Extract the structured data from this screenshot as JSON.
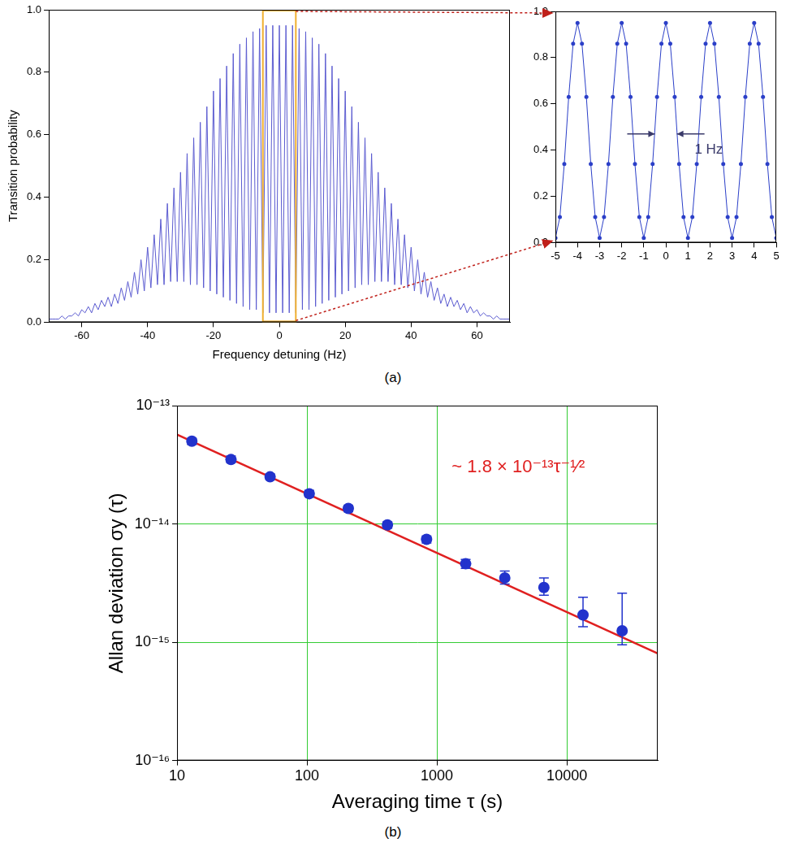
{
  "chart_data": [
    {
      "type": "line",
      "panel_label": "(a)",
      "x_label": "Frequency detuning (Hz)",
      "y_label": "Transition probability",
      "xlim": [
        -70,
        70
      ],
      "xticks": [
        -60,
        -40,
        -20,
        0,
        20,
        40,
        60
      ],
      "ylim": [
        0,
        1
      ],
      "yticks": [
        {
          "value": 0,
          "label": "0.0"
        },
        0.2,
        0.4,
        0.6,
        0.8,
        {
          "value": 1,
          "label": "1.0"
        }
      ],
      "grid": false,
      "color": "#5b5bd0",
      "marker": "none",
      "line_style": "solid",
      "highlight_range": [
        -5,
        5
      ],
      "x": [
        -70,
        -69,
        -68,
        -67,
        -66,
        -65,
        -64,
        -63,
        -62,
        -61,
        -60,
        -59,
        -58,
        -57,
        -56,
        -55,
        -54,
        -53,
        -52,
        -51,
        -50,
        -49,
        -48,
        -47,
        -46,
        -45,
        -44,
        -43,
        -42,
        -41,
        -40,
        -39,
        -38,
        -37,
        -36,
        -35,
        -34,
        -33,
        -32,
        -31,
        -30,
        -29,
        -28,
        -27,
        -26,
        -25,
        -24,
        -23,
        -22,
        -21,
        -20,
        -19,
        -18,
        -17,
        -16,
        -15,
        -14,
        -13,
        -12,
        -11,
        -10,
        -9,
        -8,
        -7,
        -6,
        -5,
        -4,
        -3,
        -2,
        -1,
        0,
        1,
        2,
        3,
        4,
        5,
        6,
        7,
        8,
        9,
        10,
        11,
        12,
        13,
        14,
        15,
        16,
        17,
        18,
        19,
        20,
        21,
        22,
        23,
        24,
        25,
        26,
        27,
        28,
        29,
        30,
        31,
        32,
        33,
        34,
        35,
        36,
        37,
        38,
        39,
        40,
        41,
        42,
        43,
        44,
        45,
        46,
        47,
        48,
        49,
        50,
        51,
        52,
        53,
        54,
        55,
        56,
        57,
        58,
        59,
        60,
        61,
        62,
        63,
        64,
        65,
        66,
        67,
        68,
        69,
        70
      ],
      "values": [
        0.01,
        0.01,
        0.01,
        0.01,
        0.02,
        0.01,
        0.02,
        0.02,
        0.03,
        0.02,
        0.04,
        0.03,
        0.05,
        0.03,
        0.06,
        0.04,
        0.07,
        0.05,
        0.08,
        0.05,
        0.09,
        0.06,
        0.11,
        0.07,
        0.13,
        0.08,
        0.16,
        0.09,
        0.2,
        0.1,
        0.24,
        0.11,
        0.28,
        0.12,
        0.33,
        0.12,
        0.38,
        0.13,
        0.43,
        0.13,
        0.48,
        0.13,
        0.54,
        0.12,
        0.59,
        0.12,
        0.64,
        0.11,
        0.69,
        0.1,
        0.74,
        0.09,
        0.78,
        0.08,
        0.82,
        0.07,
        0.86,
        0.06,
        0.89,
        0.05,
        0.91,
        0.04,
        0.93,
        0.04,
        0.94,
        0.03,
        0.95,
        0.03,
        0.95,
        0.03,
        0.95,
        0.03,
        0.95,
        0.03,
        0.95,
        0.03,
        0.94,
        0.04,
        0.93,
        0.04,
        0.91,
        0.05,
        0.89,
        0.06,
        0.86,
        0.07,
        0.82,
        0.08,
        0.78,
        0.09,
        0.74,
        0.1,
        0.69,
        0.11,
        0.64,
        0.12,
        0.59,
        0.12,
        0.54,
        0.13,
        0.48,
        0.13,
        0.43,
        0.13,
        0.38,
        0.12,
        0.33,
        0.12,
        0.28,
        0.11,
        0.24,
        0.1,
        0.2,
        0.09,
        0.16,
        0.08,
        0.13,
        0.07,
        0.11,
        0.06,
        0.09,
        0.05,
        0.08,
        0.05,
        0.07,
        0.04,
        0.06,
        0.03,
        0.05,
        0.03,
        0.04,
        0.02,
        0.03,
        0.02,
        0.02,
        0.01,
        0.02,
        0.01,
        0.01,
        0.01,
        0.01
      ]
    },
    {
      "type": "line",
      "xlim": [
        -5,
        5
      ],
      "xticks": [
        -5,
        -4,
        -3,
        -2,
        -1,
        0,
        1,
        2,
        3,
        4,
        5
      ],
      "ylim": [
        0,
        1
      ],
      "yticks": [
        {
          "value": 0,
          "label": "0.0"
        },
        0.2,
        0.4,
        0.6,
        0.8,
        {
          "value": 1,
          "label": "1.0"
        }
      ],
      "grid": false,
      "color": "#2b3fc8",
      "marker": "circle",
      "line_style": "solid",
      "annotations": [
        {
          "text": "1 Hz",
          "x": 1.3,
          "y": 0.4,
          "marks": [
            -0.5,
            0.5
          ],
          "marks_y": 0.47,
          "color": "#3a3a6a"
        }
      ],
      "x": [
        -5,
        -4.8,
        -4.6,
        -4.4,
        -4.2,
        -4,
        -3.8,
        -3.6,
        -3.4,
        -3.2,
        -3,
        -2.8,
        -2.6,
        -2.4,
        -2.2,
        -2,
        -1.8,
        -1.6,
        -1.4,
        -1.2,
        -1,
        -0.8,
        -0.6,
        -0.4,
        -0.2,
        0,
        0.2,
        0.4,
        0.6,
        0.8,
        1,
        1.2,
        1.4,
        1.6,
        1.8,
        2,
        2.2,
        2.4,
        2.6,
        2.8,
        3,
        3.2,
        3.4,
        3.6,
        3.8,
        4,
        4.2,
        4.4,
        4.6,
        4.8,
        5
      ],
      "values": [
        0.02,
        0.11,
        0.34,
        0.63,
        0.86,
        0.95,
        0.86,
        0.63,
        0.34,
        0.11,
        0.02,
        0.11,
        0.34,
        0.63,
        0.86,
        0.95,
        0.86,
        0.63,
        0.34,
        0.11,
        0.02,
        0.11,
        0.34,
        0.63,
        0.86,
        0.95,
        0.86,
        0.63,
        0.34,
        0.11,
        0.02,
        0.11,
        0.34,
        0.63,
        0.86,
        0.95,
        0.86,
        0.63,
        0.34,
        0.11,
        0.02,
        0.11,
        0.34,
        0.63,
        0.86,
        0.95,
        0.86,
        0.63,
        0.34,
        0.11,
        0.02
      ]
    },
    {
      "type": "scatter",
      "panel_label": "(b)",
      "x_label": "Averaging time τ (s)",
      "y_label": "Allan deviation σy (τ)",
      "log": true,
      "grid": true,
      "xlim": [
        10,
        50000
      ],
      "xticks": [
        10,
        100,
        1000,
        10000
      ],
      "ylim": [
        1e-16,
        1e-13
      ],
      "yticks": [
        {
          "value": 1e-16,
          "label": "10⁻¹⁶"
        },
        {
          "value": 1e-15,
          "label": "10⁻¹⁵"
        },
        {
          "value": 1e-14,
          "label": "10⁻¹⁴"
        },
        {
          "value": 1e-13,
          "label": "10⁻¹³"
        }
      ],
      "annotations": [
        {
          "text": "~ 1.8 × 10⁻¹³τ⁻¹⁄²",
          "x": 1300,
          "y": 3e-14,
          "color": "#e02020"
        }
      ],
      "series": [
        {
          "type": "scatter",
          "color": "#2233cc",
          "marker": "circle",
          "x": [
            13,
            26,
            52,
            104,
            208,
            416,
            832,
            1664,
            3328,
            6656,
            13312,
            26624
          ],
          "values": [
            5e-14,
            3.5e-14,
            2.5e-14,
            1.8e-14,
            1.35e-14,
            9.8e-15,
            7.4e-15,
            4.6e-15,
            3.5e-15,
            2.9e-15,
            1.7e-15,
            1.25e-15
          ],
          "error_bars": [
            [
              4.7e-14,
              5.3e-14
            ],
            [
              3.3e-14,
              3.75e-14
            ],
            [
              2.38e-14,
              2.65e-14
            ],
            [
              1.7e-14,
              1.92e-14
            ],
            [
              1.27e-14,
              1.43e-14
            ],
            [
              9.2e-15,
              1.04e-14
            ],
            [
              6.9e-15,
              7.9e-15
            ],
            [
              4.2e-15,
              5e-15
            ],
            [
              3.1e-15,
              4e-15
            ],
            [
              2.5e-15,
              3.5e-15
            ],
            [
              1.35e-15,
              2.4e-15
            ],
            [
              9.5e-16,
              2.6e-15
            ]
          ]
        },
        {
          "type": "line",
          "color": "#e02020",
          "marker": "none",
          "line_style": "solid",
          "x": [
            10,
            50000
          ],
          "values": [
            5.69e-14,
            8.05e-16
          ]
        }
      ]
    }
  ]
}
